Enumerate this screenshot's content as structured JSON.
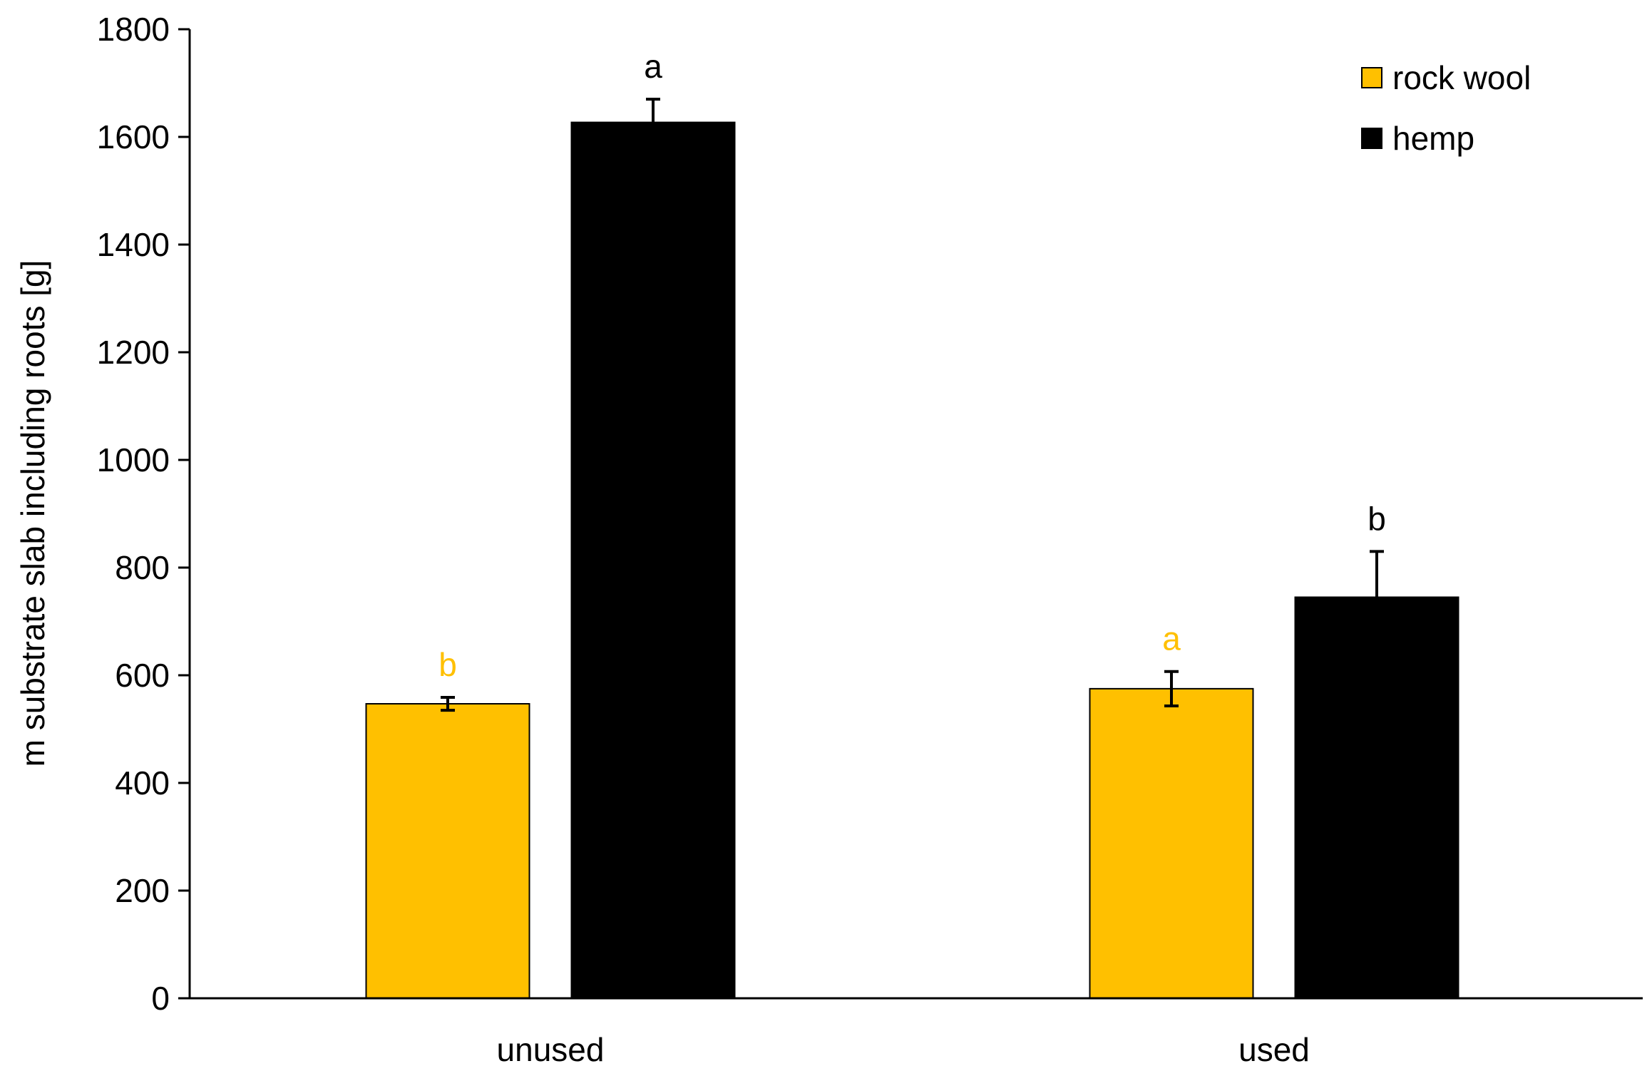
{
  "chart_data": {
    "type": "bar",
    "y_label": "m substrate slab including roots [g]",
    "categories": [
      "unused",
      "used"
    ],
    "series": [
      {
        "name": "rock wool",
        "color": "#FFC000",
        "values": [
          547,
          575
        ],
        "errors": [
          12,
          32
        ],
        "labels": [
          "b",
          "a"
        ],
        "label_color": "#FFC000"
      },
      {
        "name": "hemp",
        "color": "#000000",
        "values": [
          1627,
          745
        ],
        "errors": [
          43,
          85
        ],
        "labels": [
          "a",
          "b"
        ],
        "label_color": "#000000"
      }
    ],
    "ylim": [
      0,
      1800
    ],
    "yticks": [
      0,
      200,
      400,
      600,
      800,
      1000,
      1200,
      1400,
      1600,
      1800
    ],
    "grid": false,
    "legend": "top right"
  }
}
